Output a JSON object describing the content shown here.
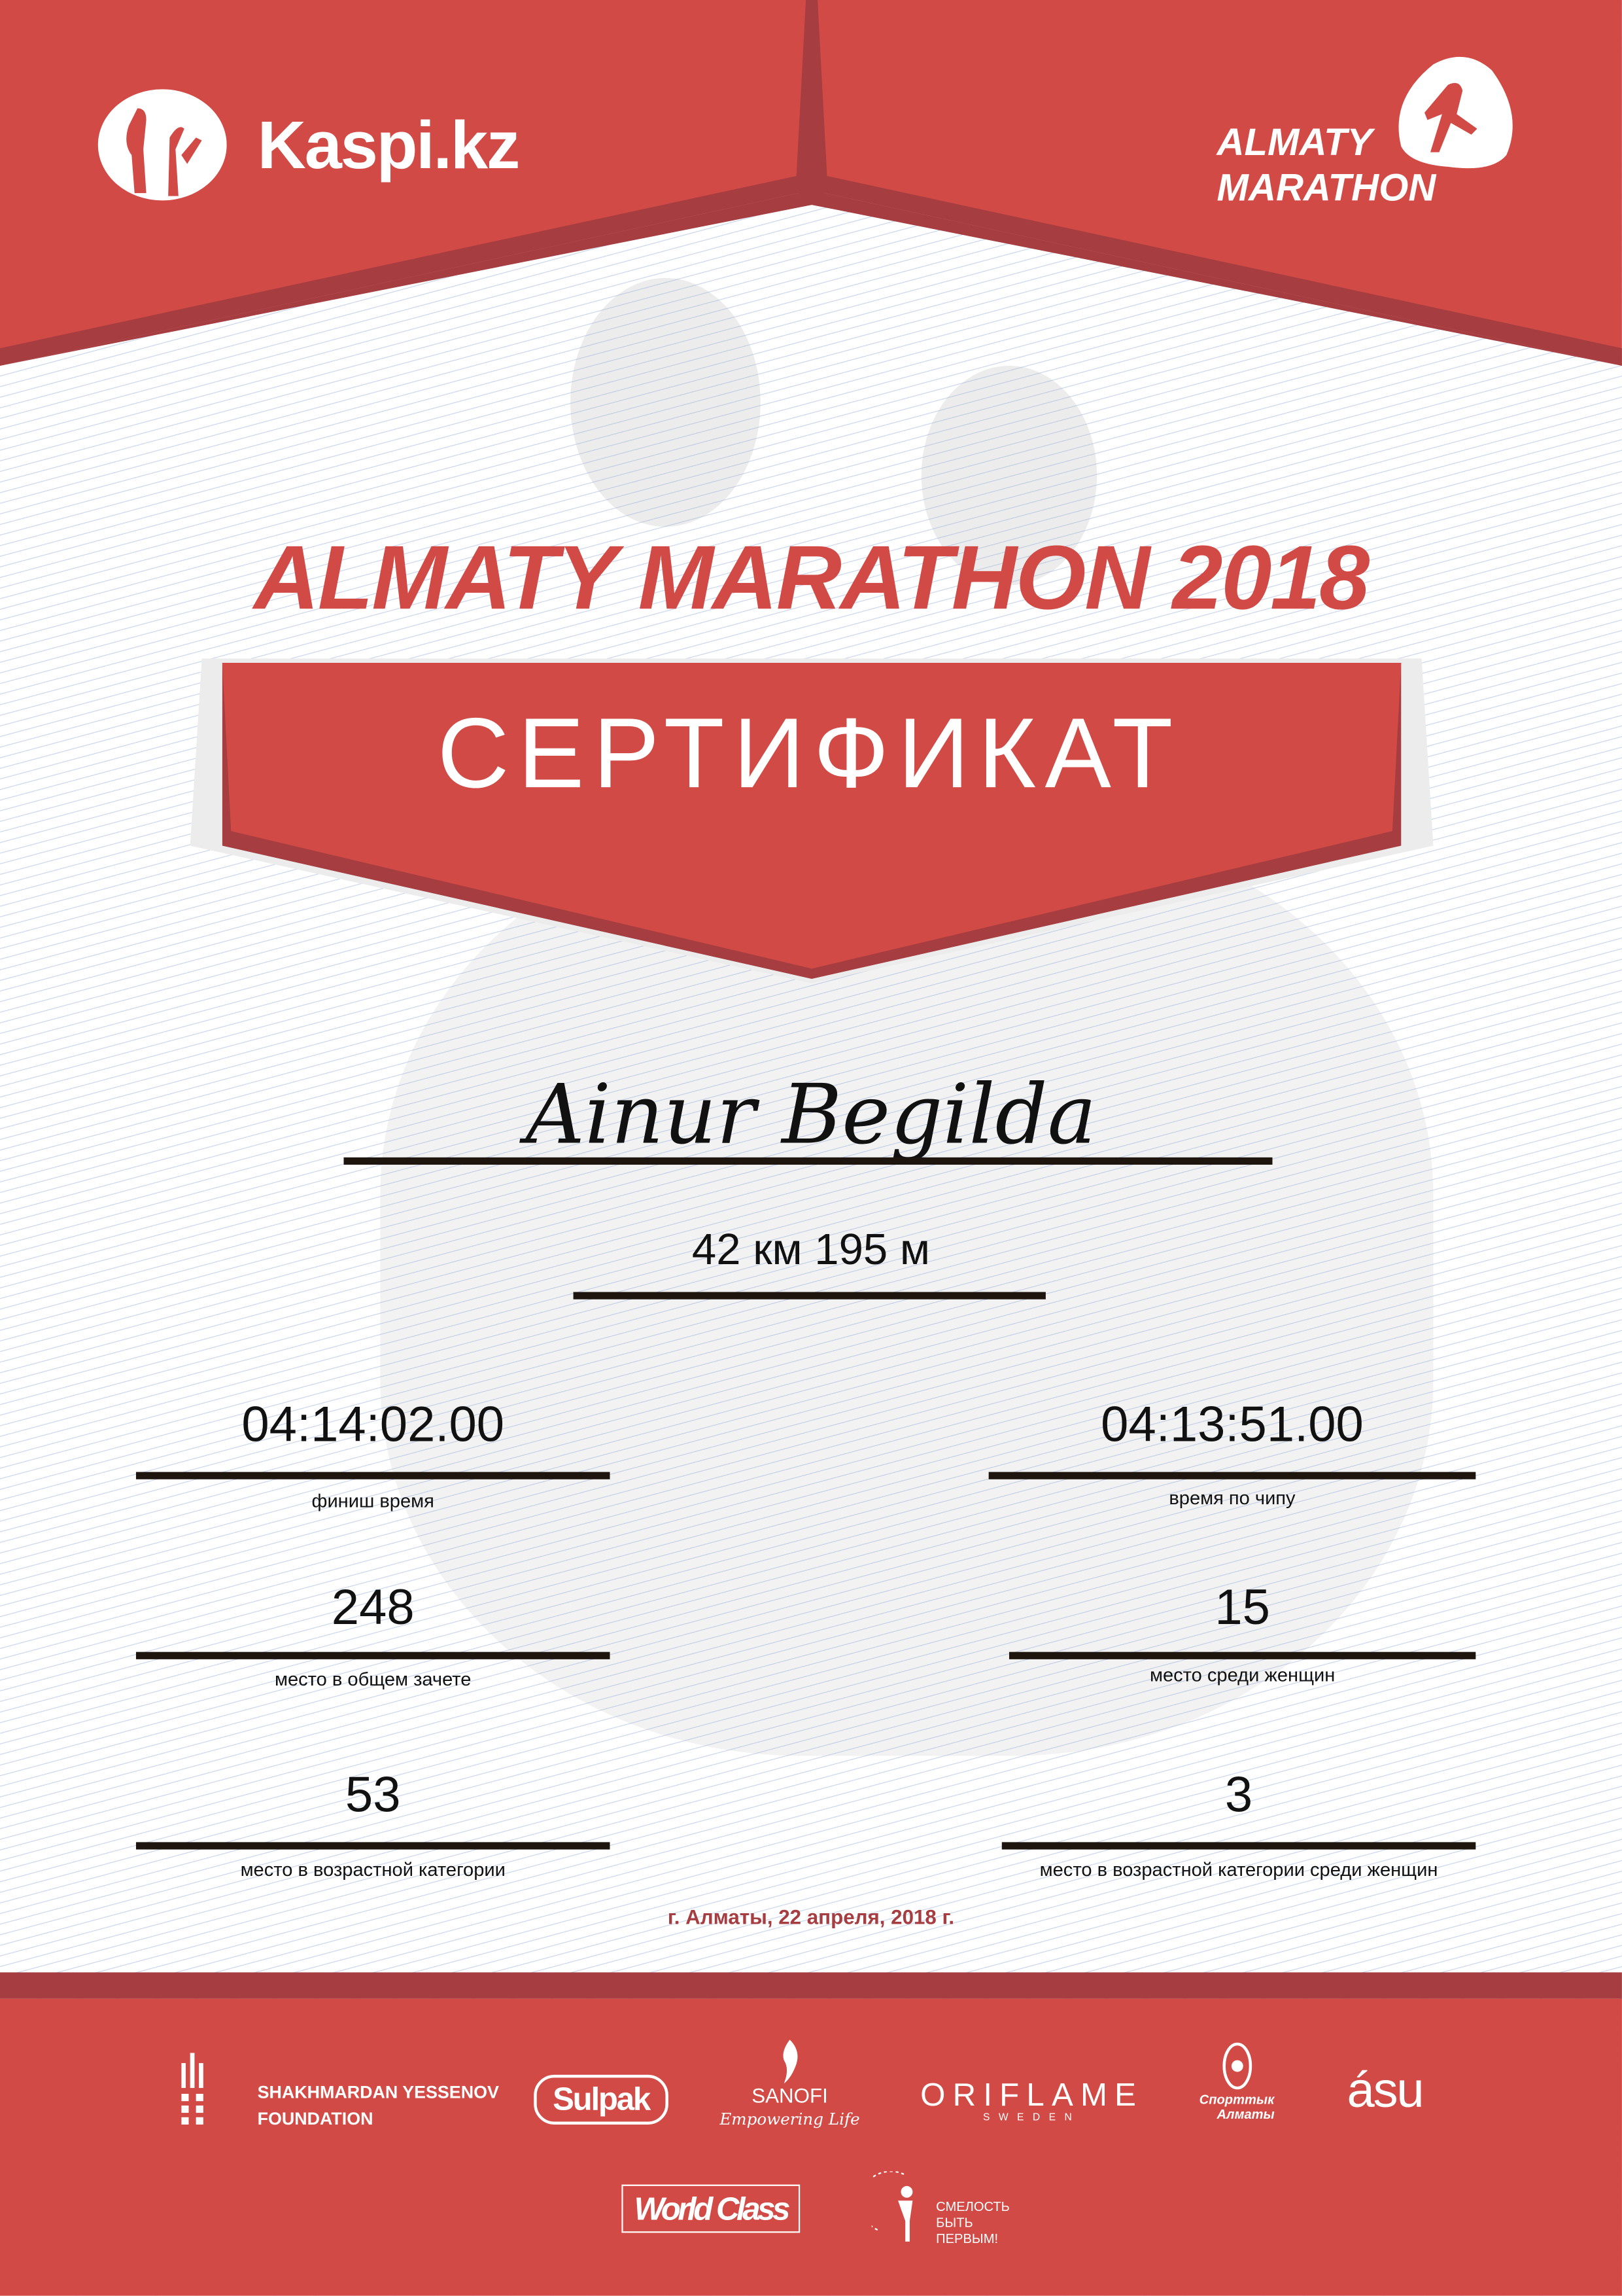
{
  "colors": {
    "brand_red": "#d24a45",
    "dark_red": "#a63d40",
    "text": "#111111"
  },
  "header": {
    "sponsor_logo": {
      "icon": "kaspi-logo-icon",
      "text": "Kaspi.kz"
    },
    "event_logo": {
      "icon": "runner-logo-icon",
      "line1": "ALMATY",
      "line2": "MARATHON"
    }
  },
  "certificate": {
    "event_title": "ALMATY MARATHON 2018",
    "banner": "СЕРТИФИКАТ",
    "participant_name": "Ainur Begilda",
    "distance": "42 км 195 м",
    "results": [
      {
        "value": "04:14:02.00",
        "label": "финиш время"
      },
      {
        "value": "04:13:51.00",
        "label": "время по чипу"
      },
      {
        "value": "248",
        "label": "место в общем зачете"
      },
      {
        "value": "15",
        "label": "место среди женщин"
      },
      {
        "value": "53",
        "label": "место в возрастной категории"
      },
      {
        "value": "3",
        "label": "место в возрастной категории среди женщин"
      }
    ],
    "place_date": "г. Алматы, 22 апреля, 2018 г."
  },
  "footer": {
    "partners": [
      {
        "line1": "SHAKHMARDAN YESSENOV",
        "line2": "FOUNDATION"
      },
      {
        "name": "Sulpak"
      },
      {
        "name": "SANOFI",
        "tagline": "Empowering Life"
      },
      {
        "name": "ORIFLAME",
        "tagline": "SWEDEN"
      },
      {
        "line1": "Спорттык",
        "line2": "Алматы"
      },
      {
        "name": "ásu"
      },
      {
        "name": "World Class"
      },
      {
        "line1": "СМЕЛОСТЬ",
        "line2": "БЫТЬ",
        "line3": "ПЕРВЫМ!"
      }
    ]
  }
}
